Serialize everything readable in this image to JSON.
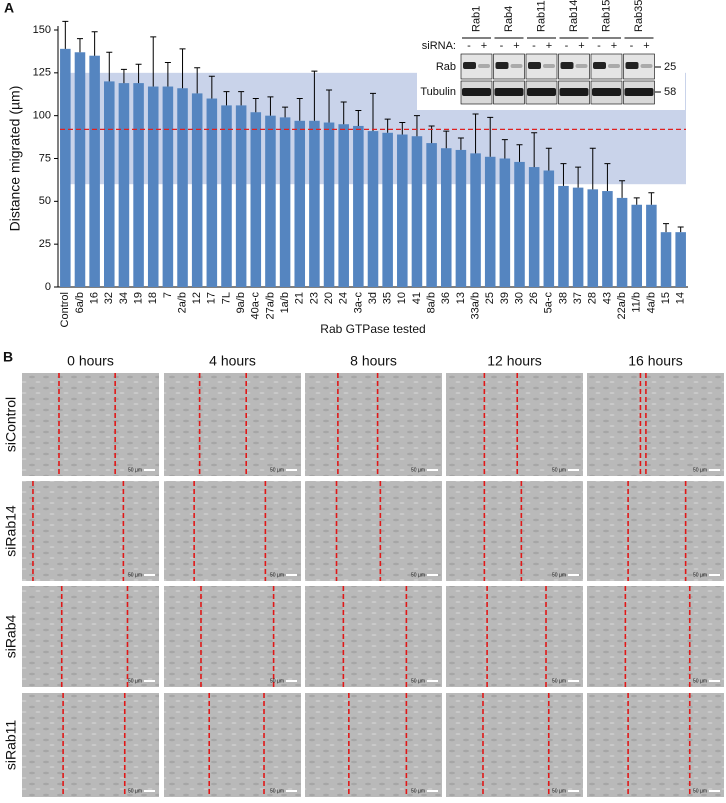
{
  "panel_a": {
    "letter": "A"
  },
  "chart_data": {
    "type": "bar",
    "y_label": "Distance migrated (µm)",
    "x_label": "Rab GTPase tested",
    "categories": [
      "Control",
      "6a/b",
      "16",
      "32",
      "34",
      "19",
      "18",
      "7",
      "2a/b",
      "12",
      "17",
      "7L",
      "9a/b",
      "40a-c",
      "27a/b",
      "1a/b",
      "21",
      "23",
      "20",
      "24",
      "3a-c",
      "3d",
      "35",
      "10",
      "41",
      "8a/b",
      "36",
      "13",
      "33a/b",
      "25",
      "39",
      "30",
      "26",
      "5a-c",
      "38",
      "37",
      "28",
      "43",
      "22a/b",
      "11/b",
      "4a/b",
      "15",
      "14"
    ],
    "values": [
      139,
      137,
      135,
      120,
      119,
      119,
      117,
      117,
      116,
      113,
      110,
      106,
      106,
      102,
      100,
      99,
      97,
      97,
      96,
      95,
      94,
      91,
      90,
      89,
      88,
      84,
      81,
      80,
      78,
      76,
      75,
      73,
      70,
      68,
      59,
      58,
      57,
      56,
      52,
      48,
      48,
      32,
      32
    ],
    "errors": [
      16,
      8,
      14,
      17,
      8,
      11,
      29,
      14,
      23,
      15,
      13,
      8,
      8,
      8,
      11,
      6,
      13,
      29,
      19,
      13,
      9,
      22,
      8,
      7,
      12,
      10,
      10,
      7,
      23,
      23,
      11,
      10,
      20,
      13,
      13,
      12,
      24,
      16,
      10,
      4,
      7,
      5,
      3
    ],
    "color": "#5585c0",
    "ylim": [
      0,
      150
    ],
    "yticks": [
      0,
      25,
      50,
      75,
      100,
      125,
      150
    ],
    "shaded_range": [
      60,
      125
    ],
    "shaded_color": "#c9d3ea",
    "reference_line": 92,
    "reference_color": "#e02020"
  },
  "blot": {
    "siRNA_label": "siRNA:",
    "minus": "-",
    "plus": "+",
    "lanes": [
      "Rab1",
      "Rab4",
      "Rab11",
      "Rab14",
      "Rab15",
      "Rab35"
    ],
    "rows": [
      "Rab",
      "Tubulin"
    ],
    "markers": [
      "25",
      "58"
    ]
  },
  "panel_b": {
    "letter": "B",
    "columns": [
      "0 hours",
      "4 hours",
      "8 hours",
      "12 hours",
      "16 hours"
    ],
    "rows": [
      "siControl",
      "siRab14",
      "siRab4",
      "siRab11"
    ],
    "scale_bar": "50 µm"
  }
}
